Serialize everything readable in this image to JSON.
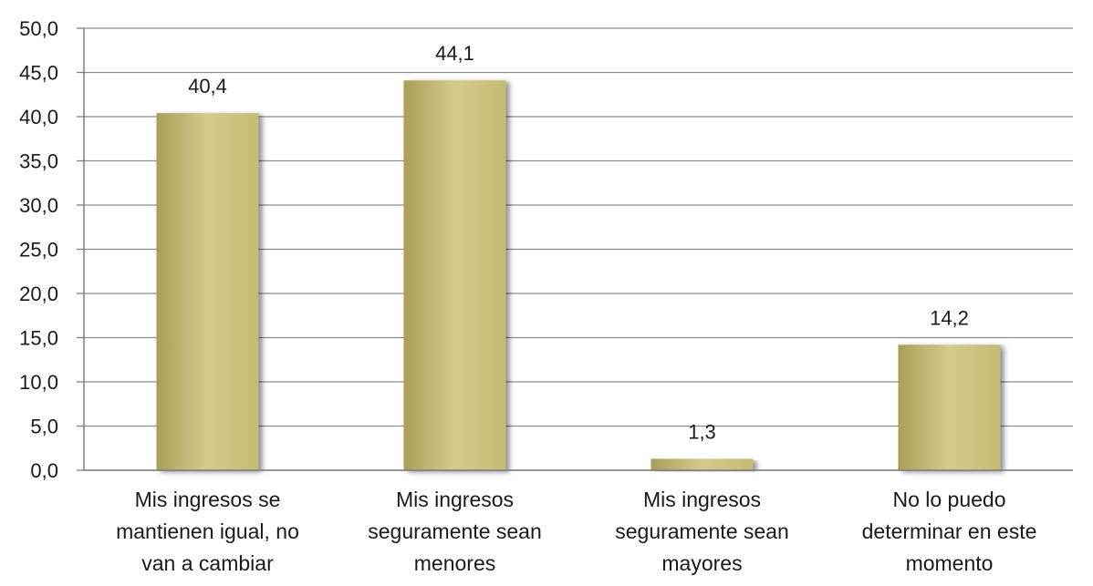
{
  "chart_data": {
    "type": "bar",
    "title": "",
    "xlabel": "",
    "ylabel": "",
    "categories": [
      [
        "Mis ingresos se",
        "mantienen igual, no",
        "van a cambiar"
      ],
      [
        "Mis ingresos",
        "seguramente sean",
        "menores"
      ],
      [
        "Mis ingresos",
        "seguramente sean",
        "mayores"
      ],
      [
        "No lo puedo",
        "determinar en este",
        "momento"
      ]
    ],
    "values": [
      40.4,
      44.1,
      1.3,
      14.2
    ],
    "value_labels": [
      "40,4",
      "44,1",
      "1,3",
      "14,2"
    ],
    "ylim": [
      0,
      50
    ],
    "yticks": [
      "0,0",
      "5,0",
      "10,0",
      "15,0",
      "20,0",
      "25,0",
      "30,0",
      "35,0",
      "40,0",
      "45,0",
      "50,0"
    ],
    "grid": true,
    "legend": "none",
    "colors": {
      "bar": "#c4bb74",
      "bar_highlight": "#d3cb8c",
      "bar_shade": "#a89f58",
      "grid": "#8c8c8c",
      "axis": "#7f7f7f",
      "text": "#1a1a1a"
    }
  }
}
